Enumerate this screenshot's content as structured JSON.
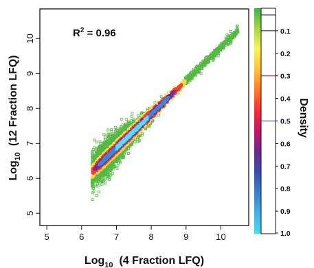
{
  "chart_data": {
    "type": "scatter",
    "subtype": "density-colored scatter",
    "xlabel": {
      "prefix": "Log",
      "sub": "10",
      "text": "(4 Fraction LFQ)"
    },
    "ylabel": {
      "prefix": "Log",
      "sub": "10",
      "text": "(12 Fraction LFQ)"
    },
    "xlim": [
      4.8,
      10.8
    ],
    "ylim": [
      4.65,
      10.85
    ],
    "x_ticks": [
      "5",
      "6",
      "7",
      "8",
      "9",
      "10"
    ],
    "y_ticks": [
      "5",
      "6",
      "7",
      "8",
      "9",
      "10"
    ],
    "grid": false,
    "annotation": {
      "base": "R",
      "sup": "2",
      "rest": " = 0.96"
    },
    "trend": {
      "slope": 0.96,
      "intercept": 0.15
    },
    "x_range": [
      5.9,
      10.5
    ],
    "colorbar": {
      "title": "Density",
      "position": "right",
      "tick_labels": [
        "0.1",
        "0.2",
        "0.3",
        "0.4",
        "0.5",
        "0.6",
        "0.7",
        "0.8",
        "0.9",
        "1.0"
      ],
      "colors_top_to_bottom": [
        "#3cb34a",
        "#a8d64a",
        "#fff45a",
        "#ffc13b",
        "#ff7a2a",
        "#f0303a",
        "#c0186a",
        "#6a2b8a",
        "#3a4ea8",
        "#3f7fc9",
        "#46b1e3",
        "#4fd8ee"
      ],
      "marker_lines": [
        0.03,
        0.1,
        0.3,
        0.5
      ]
    },
    "colors": {
      "outlier": "#57b845",
      "low": "#ffd84d",
      "mid": "#f04030",
      "high_a": "#7a2a90",
      "high_b": "#3f86d2",
      "peak": "#66d6f2"
    }
  }
}
